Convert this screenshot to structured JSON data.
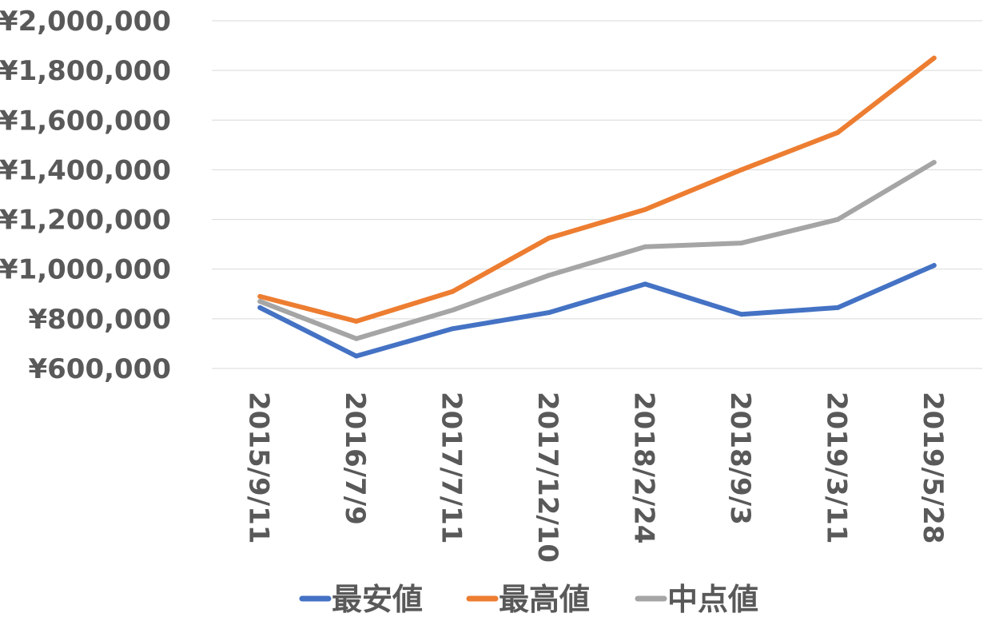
{
  "chart_data": {
    "type": "line",
    "categories": [
      "2015/9/11",
      "2016/7/9",
      "2017/7/11",
      "2017/12/10",
      "2018/2/24",
      "2018/9/3",
      "2019/3/11",
      "2019/5/28"
    ],
    "y_ticks": [
      "¥600,000",
      "¥800,000",
      "¥1,000,000",
      "¥1,200,000",
      "¥1,400,000",
      "¥1,600,000",
      "¥1,800,000",
      "¥2,000,000"
    ],
    "ylim": [
      600000,
      2000000
    ],
    "grid": true,
    "legend_position": "bottom",
    "series": [
      {
        "name": "最安値",
        "color": "#4472c4",
        "values": [
          845000,
          650000,
          760000,
          825000,
          940000,
          818000,
          845000,
          1015000
        ]
      },
      {
        "name": "最高値",
        "color": "#ed7d31",
        "values": [
          890000,
          790000,
          910000,
          1125000,
          1240000,
          1400000,
          1550000,
          1850000
        ]
      },
      {
        "name": "中点値",
        "color": "#a5a5a5",
        "values": [
          870000,
          720000,
          835000,
          975000,
          1090000,
          1105000,
          1200000,
          1430000
        ]
      }
    ]
  }
}
